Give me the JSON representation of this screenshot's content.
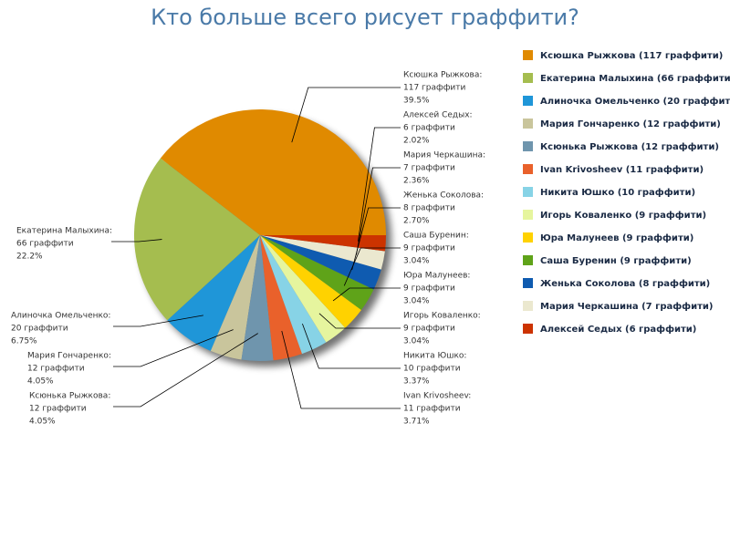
{
  "chart_data": {
    "type": "pie",
    "title": "Кто больше всего рисует граффити?",
    "label_names": [
      "Ксюшка Рыжкова:",
      "Екатерина Малыхина:",
      "Алиночка Омельченко:",
      "Мария Гончаренко:",
      "Ксюнька Рыжкова:",
      "Ivan Krivosheev:",
      "Никита Юшко:",
      "Игорь Коваленко:",
      "Юра Малунеев:",
      "Саша Буренин:",
      "Женька Соколова:",
      "Мария Черкашина:",
      "Алексей Седых:"
    ],
    "legend_labels": [
      "Ксюшка Рыжкова (117 граффити)",
      "Екатерина Малыхина (66 граффити)",
      "Алиночка Омельченко (20 граффити)",
      "Мария Гончаренко (12 граффити)",
      "Ксюнька Рыжкова (12 граффити)",
      "Ivan Krivosheev (11 граффити)",
      "Никита Юшко (10 граффити)",
      "Игорь Коваленко (9 граффити)",
      "Юра Малунеев (9 граффити)",
      "Саша Буренин (9 граффити)",
      "Женька Соколова (8 граффити)",
      "Мария Черкашина (7 граффити)",
      "Алексей Седых (6 граффити)"
    ],
    "values": [
      117,
      66,
      20,
      12,
      12,
      11,
      10,
      9,
      9,
      9,
      8,
      7,
      6
    ],
    "value_labels": [
      "117 граффити",
      "66 граффити",
      "20 граффити",
      "12 граффити",
      "12 граффити",
      "11 граффити",
      "10 граффити",
      "9 граффити",
      "9 граффити",
      "9 граффити",
      "8 граффити",
      "7 граффити",
      "6 граффити"
    ],
    "percents": [
      39.5,
      22.2,
      6.75,
      4.05,
      4.05,
      3.71,
      3.37,
      3.04,
      3.04,
      3.04,
      2.7,
      2.36,
      2.02
    ],
    "percent_labels": [
      "39.5%",
      "22.2%",
      "6.75%",
      "4.05%",
      "4.05%",
      "3.71%",
      "3.37%",
      "3.04%",
      "3.04%",
      "3.04%",
      "2.70%",
      "2.36%",
      "2.02%"
    ],
    "colors": [
      "#e08a00",
      "#a5bd4f",
      "#1f96d8",
      "#c9c59c",
      "#6f95ad",
      "#e9612b",
      "#87d3e6",
      "#e6f59e",
      "#ffd200",
      "#5fa319",
      "#0f5bb0",
      "#ebe8cf",
      "#cc3300"
    ]
  }
}
